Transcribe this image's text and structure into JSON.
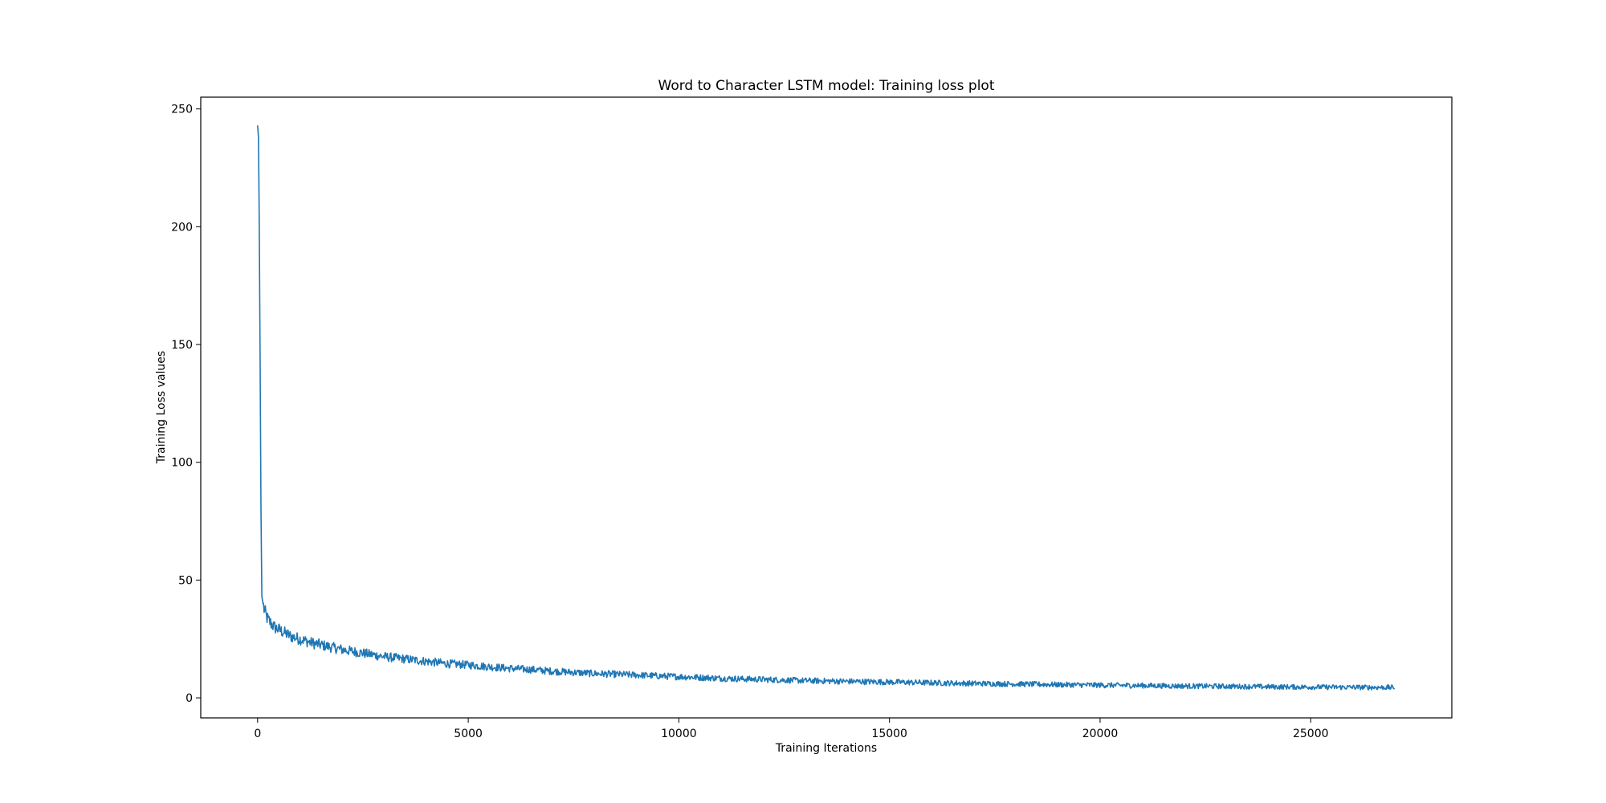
{
  "chart_data": {
    "type": "line",
    "title": "Word to Character LSTM model: Training loss plot",
    "xlabel": "Training Iterations",
    "ylabel": "Training Loss values",
    "xlim": [
      -1350,
      28350
    ],
    "ylim": [
      -8.5,
      255
    ],
    "xticks": [
      0,
      5000,
      10000,
      15000,
      20000,
      25000
    ],
    "yticks": [
      0,
      50,
      100,
      150,
      200,
      250
    ],
    "grid": false,
    "legend": "none",
    "series": [
      {
        "color": "#1f77b4",
        "x": [
          0,
          20,
          40,
          60,
          80,
          100,
          130,
          160,
          200,
          250,
          300,
          400,
          500,
          600,
          800,
          1000,
          1250,
          1500,
          1750,
          2000,
          2500,
          3000,
          3500,
          4000,
          4500,
          5000,
          5500,
          6000,
          6500,
          7000,
          7500,
          8000,
          8500,
          9000,
          9500,
          10000,
          11000,
          12000,
          13000,
          14000,
          15000,
          16000,
          17000,
          18000,
          19000,
          20000,
          21000,
          22000,
          23000,
          24000,
          25000,
          26000,
          27000
        ],
        "values": [
          243,
          238,
          200,
          140,
          80,
          43,
          40,
          37,
          35,
          33,
          32,
          30,
          29,
          28,
          26,
          25,
          23.5,
          22.5,
          21.5,
          20.5,
          19,
          17.5,
          16.5,
          15.5,
          14.5,
          14,
          13.2,
          12.5,
          12,
          11.3,
          10.8,
          10.3,
          10,
          9.7,
          9.3,
          9,
          8.3,
          7.8,
          7.3,
          7,
          6.7,
          6.4,
          6.1,
          5.9,
          5.6,
          5.4,
          5.2,
          5,
          4.9,
          4.7,
          4.6,
          4.5,
          4.4
        ]
      }
    ]
  }
}
